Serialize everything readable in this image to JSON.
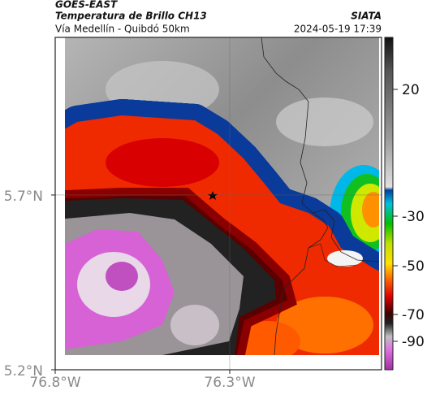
{
  "header": {
    "satellite": "GOES-EAST",
    "title": "Temperatura de Brillo CH13",
    "source": "SIATA",
    "subtitle": "Vía Medellín - Quibdó 50km",
    "datetime": "2024-05-19 17:39"
  },
  "map": {
    "xlim": [
      -76.8,
      -75.865
    ],
    "ylim": [
      5.2,
      6.151
    ],
    "xticks": [
      {
        "value": -76.8,
        "label": "76.8°W"
      },
      {
        "value": -76.3,
        "label": "76.3°W"
      }
    ],
    "yticks": [
      {
        "value": 5.7,
        "label": "5.7°N"
      },
      {
        "value": 5.2,
        "label": "5.2°N"
      }
    ]
  },
  "colorbar": {
    "ticks": [
      20,
      -30,
      -50,
      -70,
      -90
    ]
  }
}
